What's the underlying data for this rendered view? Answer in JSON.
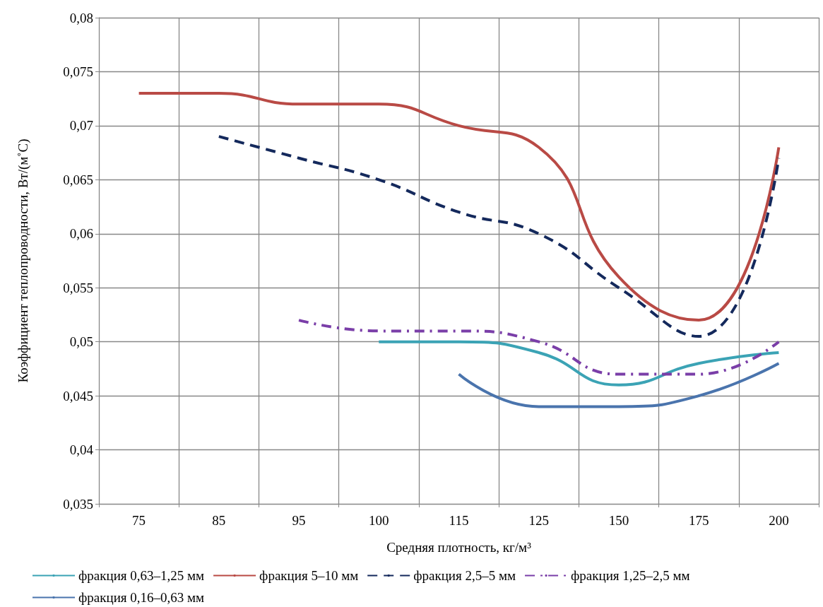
{
  "chart_data": {
    "type": "line",
    "xlabel": "Средняя плотность, кг/м³",
    "ylabel": "Коэффициент теплопроводности, Вт/(м˚С)",
    "categories": [
      "75",
      "85",
      "95",
      "100",
      "115",
      "125",
      "150",
      "175",
      "200"
    ],
    "series": [
      {
        "name": "фракция 0,63–1,25 мм",
        "color": "#3ba3b5",
        "line_style": "solid",
        "values": [
          null,
          null,
          null,
          0.05,
          0.05,
          0.049,
          0.046,
          0.048,
          0.049
        ]
      },
      {
        "name": "фракция 5–10 мм",
        "color": "#b94a45",
        "line_style": "solid",
        "values": [
          0.073,
          0.073,
          0.072,
          0.072,
          0.07,
          0.068,
          0.056,
          0.052,
          0.068
        ]
      },
      {
        "name": "фракция 2,5–5 мм",
        "color": "#14295c",
        "line_style": "dashed",
        "values": [
          null,
          0.069,
          0.067,
          0.065,
          0.062,
          0.06,
          0.055,
          0.0505,
          0.067
        ]
      },
      {
        "name": "фракция 1,25–2,5 мм",
        "color": "#7a3ea8",
        "line_style": "dashdot",
        "values": [
          null,
          null,
          0.052,
          0.051,
          0.051,
          0.05,
          0.047,
          0.047,
          0.05
        ]
      },
      {
        "name": "фракция 0,16–0,63 мм",
        "color": "#4a74ad",
        "line_style": "solid",
        "values": [
          null,
          null,
          null,
          null,
          0.047,
          0.044,
          0.044,
          0.045,
          0.048
        ]
      }
    ],
    "ylim": [
      0.035,
      0.08
    ],
    "yticks": [
      {
        "value": 0.035,
        "label": "0,035"
      },
      {
        "value": 0.04,
        "label": "0,04"
      },
      {
        "value": 0.045,
        "label": "0,045"
      },
      {
        "value": 0.05,
        "label": "0,05"
      },
      {
        "value": 0.055,
        "label": "0,055"
      },
      {
        "value": 0.06,
        "label": "0,06"
      },
      {
        "value": 0.065,
        "label": "0,065"
      },
      {
        "value": 0.07,
        "label": "0,07"
      },
      {
        "value": 0.075,
        "label": "0,075"
      },
      {
        "value": 0.08,
        "label": "0,08"
      }
    ],
    "grid": true,
    "legend": "bottom",
    "marker": "none"
  }
}
